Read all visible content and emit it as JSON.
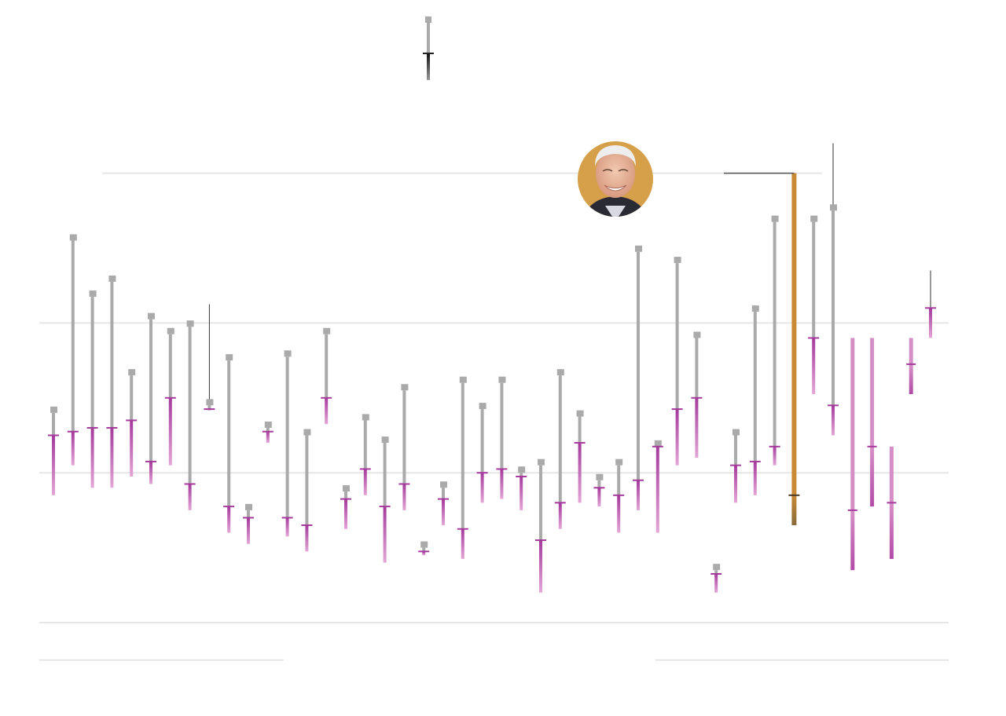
{
  "chart_data": {
    "type": "range-plot",
    "title": "",
    "xlabel": "",
    "ylabel": "",
    "ylim": [
      0,
      16
    ],
    "gridlines": [
      12,
      8,
      4
    ],
    "baselines": [
      0,
      -1
    ],
    "grid": true,
    "legend": "",
    "colors": {
      "stem": "#aaaaaa",
      "drop": "#a53a9c",
      "drop_light": "#d68fc6",
      "highlight": "#c98a35",
      "highlight_tick": "#4a3a2a",
      "grid": "#e6e6e6",
      "key_dark": "#222222",
      "whisker": "#333333",
      "portrait_bg": "#d6a04b"
    },
    "legend_key": {
      "top": 20.0,
      "mid": 16.0,
      "end": 15.0
    },
    "highlight_annotation": {
      "icon": "portrait-photo",
      "value": 12.0
    },
    "series": [
      {
        "top": 5.6,
        "mid": 5.0,
        "end": 3.4
      },
      {
        "top": 10.2,
        "mid": 5.1,
        "end": 4.2
      },
      {
        "top": 8.7,
        "mid": 5.2,
        "end": 3.6
      },
      {
        "top": 9.1,
        "mid": 5.2,
        "end": 3.6
      },
      {
        "top": 6.6,
        "mid": 5.4,
        "end": 3.9
      },
      {
        "top": 8.1,
        "mid": 4.3,
        "end": 3.7
      },
      {
        "top": 7.7,
        "mid": 6.0,
        "end": 4.2
      },
      {
        "top": 7.9,
        "mid": 3.7,
        "end": 3.0
      },
      {
        "top": 5.8,
        "mid": 5.7,
        "end": 5.7,
        "whisker": 8.5
      },
      {
        "top": 7.0,
        "mid": 3.1,
        "end": 2.4
      },
      {
        "top": 3.0,
        "mid": 2.8,
        "end": 2.1
      },
      {
        "top": 5.2,
        "mid": 5.1,
        "end": 4.8
      },
      {
        "top": 7.1,
        "mid": 2.8,
        "end": 2.3
      },
      {
        "top": 5.0,
        "mid": 2.6,
        "end": 1.9
      },
      {
        "top": 7.7,
        "mid": 6.0,
        "end": 5.3
      },
      {
        "top": 3.5,
        "mid": 3.3,
        "end": 2.5
      },
      {
        "top": 5.4,
        "mid": 4.1,
        "end": 3.4
      },
      {
        "top": 4.8,
        "mid": 3.1,
        "end": 1.6
      },
      {
        "top": 6.2,
        "mid": 3.7,
        "end": 3.0
      },
      {
        "top": 2.0,
        "mid": 1.9,
        "end": 1.8
      },
      {
        "top": 3.6,
        "mid": 3.3,
        "end": 2.6
      },
      {
        "top": 6.4,
        "mid": 2.5,
        "end": 1.7
      },
      {
        "top": 5.7,
        "mid": 4.0,
        "end": 3.2
      },
      {
        "top": 6.4,
        "mid": 4.1,
        "end": 3.3
      },
      {
        "top": 4.0,
        "mid": 3.9,
        "end": 3.0
      },
      {
        "top": 4.2,
        "mid": 2.2,
        "end": 0.8
      },
      {
        "top": 6.6,
        "mid": 3.2,
        "end": 2.5
      },
      {
        "top": 5.5,
        "mid": 4.8,
        "end": 3.2
      },
      {
        "top": 3.8,
        "mid": 3.6,
        "end": 3.1
      },
      {
        "top": 4.2,
        "mid": 3.4,
        "end": 2.4
      },
      {
        "top": 9.9,
        "mid": 3.8,
        "end": 3.0
      },
      {
        "top": 4.7,
        "mid": 4.7,
        "end": 2.4
      },
      {
        "top": 9.6,
        "mid": 5.7,
        "end": 4.2
      },
      {
        "top": 7.6,
        "mid": 6.0,
        "end": 4.4
      },
      {
        "top": 1.4,
        "mid": 1.3,
        "end": 0.8
      },
      {
        "top": 5.0,
        "mid": 4.2,
        "end": 3.2
      },
      {
        "top": 8.3,
        "mid": 4.3,
        "end": 3.4
      },
      {
        "top": 10.7,
        "mid": 4.7,
        "end": 4.2
      },
      {
        "top": 12.0,
        "mid": 3.4,
        "end": 2.6,
        "highlight": true
      },
      {
        "top": 10.7,
        "mid": 7.6,
        "end": 6.1
      },
      {
        "top": 11.0,
        "mid": 5.8,
        "end": 5.0,
        "whisker": 12.8
      },
      {
        "top": 7.6,
        "mid": 3.0,
        "end": 1.4,
        "light": true
      },
      {
        "top": 7.6,
        "mid": 4.7,
        "end": 3.1,
        "light": true
      },
      {
        "top": 4.7,
        "mid": 3.2,
        "end": 1.7,
        "light": true
      },
      {
        "top": 7.6,
        "mid": 6.9,
        "end": 6.1,
        "light": true
      },
      {
        "top": 8.4,
        "mid": 8.4,
        "end": 7.6,
        "whisker": 9.4
      }
    ]
  }
}
